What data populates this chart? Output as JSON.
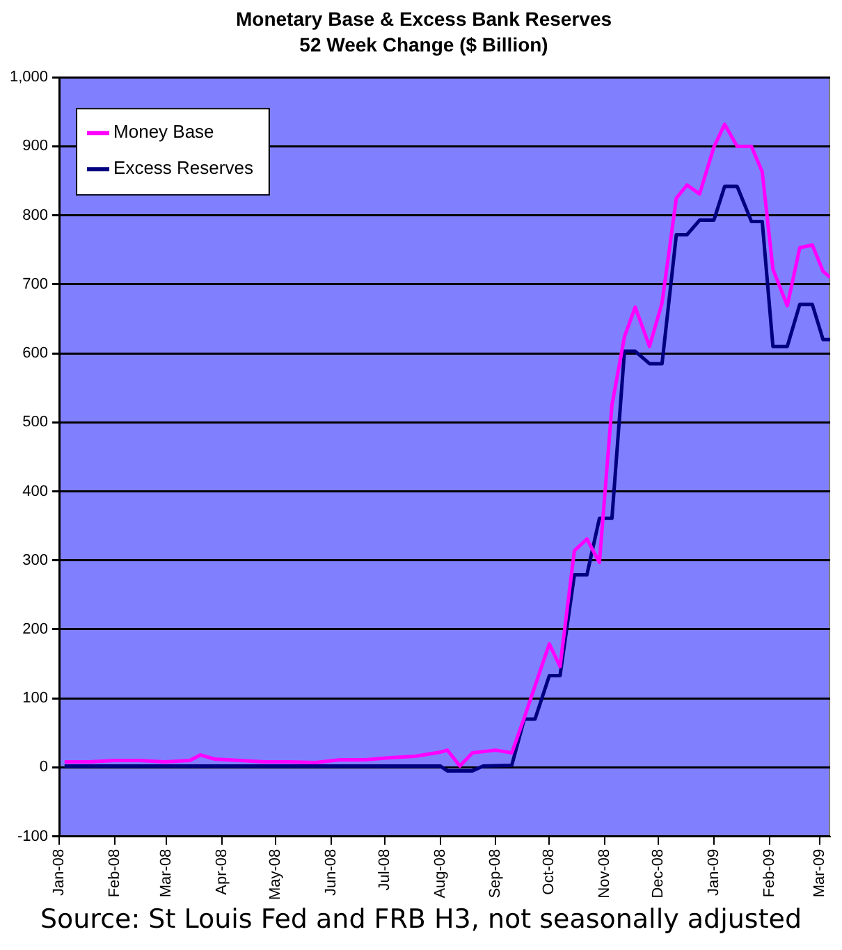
{
  "chart_data": {
    "type": "line",
    "title": "Monetary Base & Excess Bank Reserves",
    "subtitle": "52 Week Change ($ Billion)",
    "annotations": [
      "Source: St Louis Fed and FRB H3, not seasonally adjusted"
    ],
    "xlim": [
      "2008-01-01",
      "2009-03-07"
    ],
    "xticks": [
      {
        "value": "2008-01-01",
        "label": "Jan-08"
      },
      {
        "value": "2008-02-01",
        "label": "Feb-08"
      },
      {
        "value": "2008-03-01",
        "label": "Mar-08"
      },
      {
        "value": "2008-04-01",
        "label": "Apr-08"
      },
      {
        "value": "2008-05-01",
        "label": "May-08"
      },
      {
        "value": "2008-06-01",
        "label": "Jun-08"
      },
      {
        "value": "2008-07-01",
        "label": "Jul-08"
      },
      {
        "value": "2008-08-01",
        "label": "Aug-08"
      },
      {
        "value": "2008-09-01",
        "label": "Sep-08"
      },
      {
        "value": "2008-10-01",
        "label": "Oct-08"
      },
      {
        "value": "2008-11-01",
        "label": "Nov-08"
      },
      {
        "value": "2008-12-01",
        "label": "Dec-08"
      },
      {
        "value": "2009-01-01",
        "label": "Jan-09"
      },
      {
        "value": "2009-02-01",
        "label": "Feb-09"
      },
      {
        "value": "2009-03-01",
        "label": "Mar-09"
      }
    ],
    "ylim": [
      -100,
      1000
    ],
    "yticks": [
      -100,
      0,
      100,
      200,
      300,
      400,
      500,
      600,
      700,
      800,
      900,
      {
        "value": 1000,
        "label": "1,000"
      }
    ],
    "grid": "y",
    "legend": "top left",
    "marker": "none",
    "line_style": "solid",
    "series": [
      {
        "name": "Money Base",
        "color": "#ff00ff",
        "x": [
          "2008-01-04",
          "2008-01-18",
          "2008-02-01",
          "2008-02-15",
          "2008-02-29",
          "2008-03-14",
          "2008-03-20",
          "2008-03-28",
          "2008-04-11",
          "2008-04-25",
          "2008-05-09",
          "2008-05-23",
          "2008-06-06",
          "2008-06-20",
          "2008-07-04",
          "2008-07-18",
          "2008-08-01",
          "2008-08-05",
          "2008-08-12",
          "2008-08-19",
          "2008-09-01",
          "2008-09-10",
          "2008-09-17",
          "2008-09-23",
          "2008-10-01",
          "2008-10-07",
          "2008-10-15",
          "2008-10-22",
          "2008-10-29",
          "2008-11-05",
          "2008-11-12",
          "2008-11-18",
          "2008-11-26",
          "2008-12-03",
          "2008-12-11",
          "2008-12-17",
          "2008-12-24",
          "2009-01-01",
          "2009-01-07",
          "2009-01-14",
          "2009-01-22",
          "2009-01-28",
          "2009-02-03",
          "2009-02-11",
          "2009-02-18",
          "2009-02-25",
          "2009-03-03",
          "2009-03-07"
        ],
        "values": [
          8,
          8,
          10,
          10,
          8,
          10,
          18,
          12,
          10,
          8,
          8,
          7,
          11,
          11,
          14,
          16,
          22,
          25,
          2,
          21,
          25,
          21,
          72,
          118,
          179,
          146,
          314,
          331,
          297,
          525,
          624,
          667,
          610,
          673,
          825,
          844,
          831,
          899,
          932,
          900,
          900,
          863,
          722,
          669,
          753,
          757,
          719,
          710
        ]
      },
      {
        "name": "Excess Reserves",
        "color": "#000080",
        "x": [
          "2008-01-04",
          "2008-03-20",
          "2008-05-23",
          "2008-08-01",
          "2008-08-05",
          "2008-08-19",
          "2008-08-25",
          "2008-09-10",
          "2008-09-17",
          "2008-09-23",
          "2008-10-01",
          "2008-10-07",
          "2008-10-15",
          "2008-10-22",
          "2008-10-29",
          "2008-11-05",
          "2008-11-12",
          "2008-11-18",
          "2008-11-26",
          "2008-12-03",
          "2008-12-11",
          "2008-12-17",
          "2008-12-24",
          "2009-01-01",
          "2009-01-07",
          "2009-01-14",
          "2009-01-22",
          "2009-01-28",
          "2009-02-03",
          "2009-02-11",
          "2009-02-18",
          "2009-02-25",
          "2009-03-03",
          "2009-03-07"
        ],
        "values": [
          2,
          2,
          2,
          2,
          -5,
          -5,
          2,
          3,
          70,
          70,
          133,
          133,
          279,
          279,
          361,
          361,
          603,
          603,
          585,
          585,
          772,
          772,
          793,
          793,
          842,
          842,
          791,
          791,
          610,
          610,
          671,
          671,
          620,
          620
        ]
      }
    ]
  }
}
